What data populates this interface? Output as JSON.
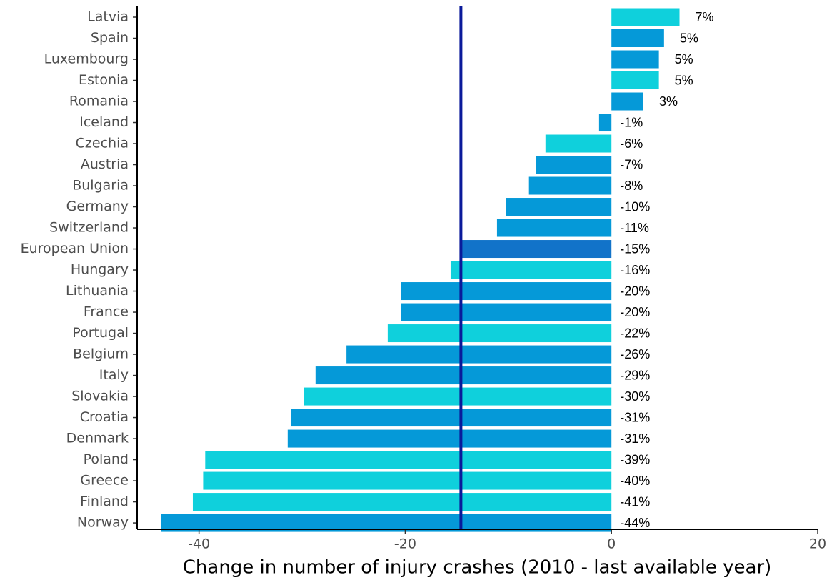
{
  "chart_data": {
    "type": "bar",
    "orientation": "horizontal",
    "x_label": "Change in number of injury crashes (2010 -  last available year)",
    "categories": [
      "Latvia",
      "Spain",
      "Luxembourg",
      "Estonia",
      "Romania",
      "Iceland",
      "Czechia",
      "Austria",
      "Bulgaria",
      "Germany",
      "Switzerland",
      "European Union",
      "Hungary",
      "Lithuania",
      "France",
      "Portugal",
      "Belgium",
      "Italy",
      "Slovakia",
      "Croatia",
      "Denmark",
      "Poland",
      "Greece",
      "Finland",
      "Norway"
    ],
    "values": [
      6.6,
      5.1,
      4.6,
      4.6,
      3.1,
      -1.2,
      -6.4,
      -7.3,
      -8.0,
      -10.2,
      -11.1,
      -14.6,
      -15.6,
      -20.4,
      -20.4,
      -21.7,
      -25.7,
      -28.7,
      -29.8,
      -31.1,
      -31.4,
      -39.4,
      -39.6,
      -40.6,
      -43.7
    ],
    "value_labels": [
      "7%",
      "5%",
      "5%",
      "5%",
      "3%",
      "-1%",
      "-6%",
      "-7%",
      "-8%",
      "-10%",
      "-11%",
      "-15%",
      "-16%",
      "-20%",
      "-20%",
      "-22%",
      "-26%",
      "-29%",
      "-30%",
      "-31%",
      "-31%",
      "-39%",
      "-40%",
      "-41%",
      "-44%"
    ],
    "colors": [
      "#0fd0dc",
      "#0599d8",
      "#0599d8",
      "#0fd0dc",
      "#0599d8",
      "#0599d8",
      "#0fd0dc",
      "#0599d8",
      "#0599d8",
      "#0599d8",
      "#0599d8",
      "#1273c9",
      "#0fd0dc",
      "#0599d8",
      "#0599d8",
      "#0fd0dc",
      "#0599d8",
      "#0599d8",
      "#0fd0dc",
      "#0599d8",
      "#0599d8",
      "#0fd0dc",
      "#0fd0dc",
      "#0fd0dc",
      "#0599d8"
    ],
    "xlim": [
      -46,
      20
    ],
    "xticks": [
      -40,
      -20,
      0,
      20
    ],
    "reference_line": -14.6,
    "reference_color": "#0a1a9a",
    "grid": false
  }
}
